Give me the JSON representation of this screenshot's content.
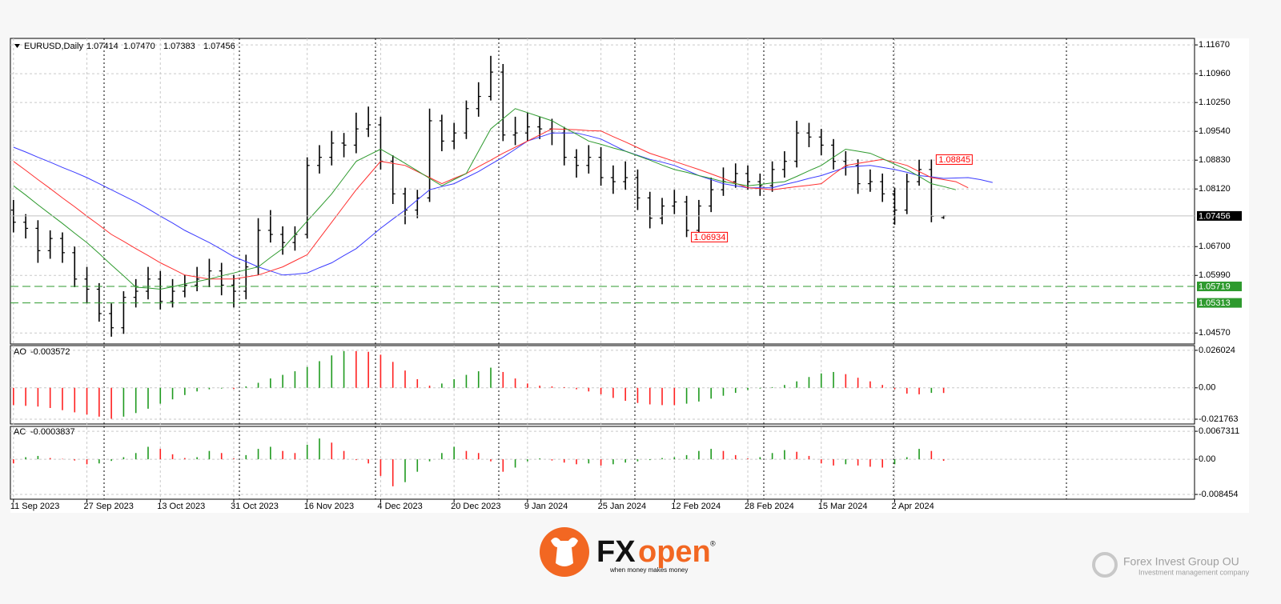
{
  "chart_data": [
    {
      "type": "ohlc",
      "symbol": "EURUSD,Daily",
      "header_values": [
        "1.07414",
        "1.07470",
        "1.07383",
        "1.07456"
      ],
      "color": "#000000",
      "x": [
        0,
        2,
        4,
        6,
        8,
        10,
        12,
        14,
        16,
        18,
        20,
        22,
        24,
        26,
        28,
        30,
        32,
        34,
        36,
        38,
        40,
        42,
        44,
        46,
        48,
        50,
        52,
        54,
        56,
        58,
        60,
        62,
        64,
        66,
        68,
        70,
        72,
        74,
        76,
        78,
        80,
        82,
        84,
        86,
        88,
        90,
        92,
        94,
        96,
        98,
        100,
        102,
        104,
        106,
        108,
        110,
        112,
        114,
        116,
        118,
        120,
        122,
        124,
        126,
        128,
        130,
        132,
        134,
        136,
        138,
        140,
        142,
        144,
        146,
        148,
        150,
        152,
        154,
        156,
        158,
        160
      ],
      "open": [
        1.076,
        1.073,
        1.0715,
        1.066,
        1.069,
        1.0655,
        1.059,
        1.0565,
        1.0505,
        1.047,
        1.0545,
        1.056,
        1.059,
        1.0535,
        1.056,
        1.0575,
        1.059,
        1.061,
        1.0575,
        1.056,
        1.062,
        1.071,
        1.07,
        1.068,
        1.07,
        1.087,
        1.089,
        1.0925,
        1.092,
        1.096,
        1.097,
        1.088,
        1.08,
        1.076,
        1.079,
        1.098,
        1.093,
        1.095,
        1.101,
        1.104,
        1.11,
        1.0945,
        1.095,
        1.0965,
        1.096,
        1.095,
        1.089,
        1.087,
        1.089,
        1.084,
        1.083,
        1.084,
        1.079,
        1.074,
        1.077,
        1.078,
        1.071,
        1.077,
        1.081,
        1.083,
        1.085,
        1.083,
        1.082,
        1.086,
        1.088,
        1.095,
        1.094,
        1.092,
        1.088,
        1.087,
        1.0825,
        1.083,
        1.08,
        1.076,
        1.083,
        1.086,
        1.07414,
        null,
        null,
        null,
        null
      ],
      "high": [
        1.0785,
        1.075,
        1.0735,
        1.071,
        1.0705,
        1.067,
        1.062,
        1.058,
        1.053,
        1.056,
        1.059,
        1.062,
        1.061,
        1.059,
        1.06,
        1.062,
        1.064,
        1.063,
        1.06,
        1.065,
        1.074,
        1.076,
        1.072,
        1.072,
        1.089,
        1.092,
        1.0955,
        1.095,
        1.1,
        1.1015,
        1.099,
        1.0895,
        1.0815,
        1.081,
        1.101,
        1.0995,
        1.0975,
        1.103,
        1.1075,
        1.114,
        1.112,
        1.099,
        1.1,
        1.099,
        1.0985,
        1.0965,
        1.091,
        1.092,
        1.0915,
        1.087,
        1.088,
        1.086,
        1.0805,
        1.079,
        1.081,
        1.0795,
        1.0785,
        1.084,
        1.0865,
        1.0875,
        1.087,
        1.085,
        1.088,
        1.0905,
        1.098,
        1.0975,
        1.096,
        1.0935,
        1.0905,
        1.0885,
        1.086,
        1.085,
        1.0815,
        1.085,
        1.0884,
        1.08845,
        1.0747,
        null,
        null,
        null,
        null
      ],
      "low": [
        1.0705,
        1.069,
        1.063,
        1.064,
        1.063,
        1.057,
        1.053,
        1.0485,
        1.0448,
        1.0455,
        1.052,
        1.054,
        1.0515,
        1.052,
        1.0545,
        1.056,
        1.057,
        1.055,
        1.052,
        1.054,
        1.06,
        1.068,
        1.065,
        1.066,
        1.069,
        1.085,
        1.087,
        1.089,
        1.09,
        1.094,
        1.086,
        1.0775,
        1.0725,
        1.074,
        1.078,
        1.0905,
        1.091,
        1.0935,
        1.099,
        1.103,
        1.093,
        1.092,
        1.093,
        1.0935,
        1.092,
        1.087,
        1.084,
        1.085,
        1.082,
        1.08,
        1.081,
        1.076,
        1.0715,
        1.0725,
        1.075,
        1.06934,
        1.07,
        1.0755,
        1.0795,
        1.0815,
        1.081,
        1.0795,
        1.0805,
        1.084,
        1.0865,
        1.0915,
        1.0895,
        1.086,
        1.0845,
        1.08,
        1.0805,
        1.078,
        1.0724,
        1.075,
        1.082,
        1.073,
        1.07383,
        null,
        null,
        null,
        null
      ],
      "close": [
        1.073,
        1.0715,
        1.066,
        1.069,
        1.0655,
        1.059,
        1.0565,
        1.0505,
        1.047,
        1.0545,
        1.056,
        1.059,
        1.0535,
        1.056,
        1.0575,
        1.059,
        1.061,
        1.0575,
        1.056,
        1.062,
        1.071,
        1.07,
        1.068,
        1.07,
        1.087,
        1.089,
        1.0925,
        1.092,
        1.096,
        1.097,
        1.088,
        1.08,
        1.076,
        1.079,
        1.098,
        1.093,
        1.095,
        1.101,
        1.104,
        1.11,
        1.0945,
        1.095,
        1.0965,
        1.096,
        1.095,
        1.089,
        1.087,
        1.089,
        1.084,
        1.083,
        1.084,
        1.079,
        1.074,
        1.077,
        1.078,
        1.071,
        1.077,
        1.081,
        1.083,
        1.085,
        1.083,
        1.082,
        1.086,
        1.088,
        1.095,
        1.094,
        1.092,
        1.088,
        1.087,
        1.0825,
        1.083,
        1.08,
        1.076,
        1.083,
        1.086,
        1.0745,
        1.07456,
        null,
        null,
        null,
        null
      ],
      "lines": [
        {
          "color": "#3b3bff",
          "values": [
            1.0915,
            1.0903,
            1.089,
            1.0878,
            1.0865,
            1.0853,
            1.084,
            1.0825,
            1.081,
            1.0795,
            1.078,
            1.0763,
            1.0745,
            1.0728,
            1.071,
            1.0695,
            1.068,
            1.0663,
            1.0645,
            1.0633,
            1.062,
            1.061,
            1.06,
            1.0602,
            1.0605,
            1.0618,
            1.063,
            1.0648,
            1.0665,
            1.069,
            1.0715,
            1.0738,
            1.076,
            1.0785,
            1.081,
            1.0818,
            1.0825,
            1.084,
            1.0855,
            1.0873,
            1.089,
            1.091,
            1.093,
            1.094,
            1.095,
            1.095,
            1.095,
            1.0943,
            1.0935,
            1.092,
            1.0905,
            1.0895,
            1.0885,
            1.0878,
            1.087,
            1.0858,
            1.0845,
            1.0835,
            1.0825,
            1.082,
            1.0815,
            1.0815,
            1.0815,
            1.0823,
            1.083,
            1.0838,
            1.0845,
            1.0855,
            1.0865,
            1.0868,
            1.087,
            1.0865,
            1.086,
            1.0853,
            1.0845,
            1.0842,
            1.0838,
            1.0839,
            1.084,
            1.0835,
            1.0828
          ]
        },
        {
          "color": "#ff3030",
          "values": [
            1.088,
            1.0858,
            1.0835,
            1.0813,
            1.079,
            1.0768,
            1.0745,
            1.0723,
            1.07,
            1.0683,
            1.0665,
            1.0648,
            1.063,
            1.0615,
            1.06,
            1.0595,
            1.059,
            1.059,
            1.059,
            1.0595,
            1.06,
            1.061,
            1.062,
            1.0635,
            1.065,
            1.069,
            1.073,
            1.077,
            1.081,
            1.0845,
            1.088,
            1.0875,
            1.087,
            1.0855,
            1.084,
            1.0825,
            1.0838,
            1.085,
            1.0867,
            1.0883,
            1.09,
            1.0915,
            1.093,
            1.0945,
            1.096,
            1.0959,
            1.0958,
            1.0956,
            1.0955,
            1.0941,
            1.0928,
            1.0914,
            1.09,
            1.089,
            1.088,
            1.087,
            1.086,
            1.0849,
            1.0838,
            1.0826,
            1.0815,
            1.0813,
            1.081,
            1.0814,
            1.0818,
            1.0821,
            1.0825,
            1.0848,
            1.087,
            1.0875,
            1.088,
            1.0885,
            1.0878,
            1.087,
            1.0855,
            1.084,
            1.0835,
            1.083,
            1.0815,
            null,
            null
          ]
        },
        {
          "color": "#2e9a2e",
          "values": [
            1.082,
            1.0797,
            1.0773,
            1.075,
            1.0727,
            1.0703,
            1.068,
            1.0653,
            1.0625,
            1.0598,
            1.057,
            1.0568,
            1.0565,
            1.0571,
            1.0578,
            1.0584,
            1.059,
            1.0598,
            1.0605,
            1.0613,
            1.062,
            1.0643,
            1.0665,
            1.0699,
            1.0733,
            1.0766,
            1.08,
            1.084,
            1.088,
            1.0895,
            1.091,
            1.0893,
            1.0875,
            1.0857,
            1.0838,
            1.082,
            1.0835,
            1.085,
            1.0905,
            1.096,
            1.0985,
            1.101,
            1.1,
            1.099,
            1.098,
            1.0963,
            1.0947,
            1.093,
            1.0922,
            1.0913,
            1.0905,
            1.0894,
            1.0883,
            1.0871,
            1.086,
            1.0853,
            1.0845,
            1.0838,
            1.083,
            1.0825,
            1.082,
            1.0823,
            1.0827,
            1.083,
            1.0843,
            1.0857,
            1.087,
            1.089,
            1.091,
            1.0905,
            1.09,
            1.0887,
            1.0873,
            1.086,
            1.0843,
            1.0825,
            1.0818,
            1.081,
            null,
            null,
            null
          ]
        }
      ],
      "hlines": [
        {
          "value": 1.05719,
          "color": "#2e9a2e"
        },
        {
          "value": 1.05313,
          "color": "#2e9a2e"
        }
      ],
      "annotations": [
        {
          "x": 150,
          "value": 1.08845,
          "color": "#ff0000"
        },
        {
          "x": 110,
          "value": 1.06934,
          "color": "#ff0000"
        }
      ],
      "xlim": [
        -0.5,
        193
      ],
      "ylim": [
        1.043,
        1.1183
      ],
      "yticks": [
        {
          "value": 1.1167,
          "label": "1.11670"
        },
        {
          "value": 1.1096,
          "label": "1.10960"
        },
        {
          "value": 1.1025,
          "label": "1.10250"
        },
        {
          "value": 1.0954,
          "label": "1.09540"
        },
        {
          "value": 1.0883,
          "label": "1.08830"
        },
        {
          "value": 1.0812,
          "label": "1.08120"
        },
        {
          "value": 1.067,
          "label": "1.06700"
        },
        {
          "value": 1.0599,
          "label": "1.05990"
        },
        {
          "value": 1.0457,
          "label": "1.04570"
        }
      ],
      "grid": true
    },
    {
      "type": "histogram",
      "title": "AO",
      "up_color": "#1f9a1f",
      "down_color": "#ff2020",
      "x": [
        0,
        2,
        4,
        6,
        8,
        10,
        12,
        14,
        16,
        18,
        20,
        22,
        24,
        26,
        28,
        30,
        32,
        34,
        36,
        38,
        40,
        42,
        44,
        46,
        48,
        50,
        52,
        54,
        56,
        58,
        60,
        62,
        64,
        66,
        68,
        70,
        72,
        74,
        76,
        78,
        80,
        82,
        84,
        86,
        88,
        90,
        92,
        94,
        96,
        98,
        100,
        102,
        104,
        106,
        108,
        110,
        112,
        114,
        116,
        118,
        120,
        122,
        124,
        126,
        128,
        130,
        132,
        134,
        136,
        138,
        140,
        142,
        144,
        146,
        148,
        150,
        152
      ],
      "values": [
        -0.012,
        -0.0125,
        -0.013,
        -0.014,
        -0.0155,
        -0.017,
        -0.0185,
        -0.02,
        -0.0215,
        -0.02,
        -0.0175,
        -0.0145,
        -0.011,
        -0.008,
        -0.005,
        -0.0025,
        -0.001,
        -0.0005,
        -0.0008,
        0.001,
        0.0035,
        0.0065,
        0.009,
        0.0115,
        0.0145,
        0.0185,
        0.0225,
        0.0255,
        0.0255,
        0.025,
        0.023,
        0.018,
        0.012,
        0.006,
        0.0015,
        0.003,
        0.006,
        0.009,
        0.0115,
        0.014,
        0.011,
        0.0065,
        0.003,
        0.0015,
        0.001,
        0.0005,
        -0.001,
        -0.0025,
        -0.0045,
        -0.007,
        -0.009,
        -0.0105,
        -0.0115,
        -0.012,
        -0.012,
        -0.011,
        -0.0095,
        -0.0075,
        -0.0055,
        -0.0035,
        -0.0015,
        -0.0005,
        0.0005,
        0.002,
        0.0045,
        0.0075,
        0.01,
        0.011,
        0.0095,
        0.007,
        0.0045,
        0.002,
        -0.001,
        -0.004,
        -0.0045,
        -0.0035,
        -0.003572
      ],
      "xlim": [
        -0.5,
        193
      ],
      "ylim": [
        -0.0251,
        0.0293
      ],
      "yticks": [
        0.026024,
        {
          "value": 0,
          "label": "0.00"
        },
        -0.021763
      ],
      "grid": true
    },
    {
      "type": "histogram",
      "title": "AC",
      "up_color": "#1f9a1f",
      "down_color": "#ff2020",
      "x": [
        0,
        2,
        4,
        6,
        8,
        10,
        12,
        14,
        16,
        18,
        20,
        22,
        24,
        26,
        28,
        30,
        32,
        34,
        36,
        38,
        40,
        42,
        44,
        46,
        48,
        50,
        52,
        54,
        56,
        58,
        60,
        62,
        64,
        66,
        68,
        70,
        72,
        74,
        76,
        78,
        80,
        82,
        84,
        86,
        88,
        90,
        92,
        94,
        96,
        98,
        100,
        102,
        104,
        106,
        108,
        110,
        112,
        114,
        116,
        118,
        120,
        122,
        124,
        126,
        128,
        130,
        132,
        134,
        136,
        138,
        140,
        142,
        144,
        146,
        148,
        150,
        152
      ],
      "values": [
        -0.001,
        0.0005,
        0.0008,
        0.0003,
        0.0001,
        -0.0003,
        -0.0012,
        -0.001,
        -0.0004,
        0.0005,
        0.0015,
        0.003,
        0.0025,
        0.0012,
        0.0003,
        0.0005,
        0.002,
        0.0015,
        0.0002,
        0.001,
        0.0025,
        0.003,
        0.002,
        0.0015,
        0.0035,
        0.005,
        0.004,
        0.002,
        -0.0002,
        -0.001,
        -0.004,
        -0.0065,
        -0.0055,
        -0.003,
        -0.0005,
        0.0015,
        0.003,
        0.002,
        0.0015,
        -0.0005,
        -0.003,
        -0.002,
        -0.0005,
        0.0002,
        -0.0003,
        -0.0008,
        -0.0012,
        -0.001,
        -0.0015,
        -0.0012,
        -0.0008,
        -0.0005,
        -0.0002,
        0.0003,
        0.0005,
        0.001,
        0.002,
        0.0025,
        0.002,
        0.001,
        0.0002,
        0.0005,
        0.0015,
        0.0022,
        0.0018,
        0.0008,
        -0.001,
        -0.0015,
        -0.0012,
        -0.0015,
        -0.0018,
        -0.002,
        -0.0012,
        0.0005,
        0.0025,
        0.002,
        -0.0003837
      ],
      "xlim": [
        -0.5,
        193
      ],
      "ylim": [
        -0.0096,
        0.0079
      ],
      "yticks": [
        0.0067311,
        {
          "value": 0,
          "label": "0.00"
        },
        -0.008454
      ],
      "xticks": [
        {
          "value": 0,
          "label": "11 Sep 2023"
        },
        {
          "value": 12,
          "label": "27 Sep 2023"
        },
        {
          "value": 24,
          "label": "13 Oct 2023"
        },
        {
          "value": 36,
          "label": "31 Oct 2023"
        },
        {
          "value": 48,
          "label": "16 Nov 2023"
        },
        {
          "value": 60,
          "label": "4 Dec 2023"
        },
        {
          "value": 72,
          "label": "20 Dec 2023"
        },
        {
          "value": 84,
          "label": "9 Jan 2024"
        },
        {
          "value": 96,
          "label": "25 Jan 2024"
        },
        {
          "value": 108,
          "label": "12 Feb 2024"
        },
        {
          "value": 120,
          "label": "28 Feb 2024"
        },
        {
          "value": 132,
          "label": "15 Mar 2024"
        },
        {
          "value": 144,
          "label": "2 Apr 2024"
        }
      ],
      "grid": true
    }
  ],
  "brand": {
    "fx": "FX",
    "open": "open",
    "mark": "®",
    "tagline": "when money makes money"
  },
  "watermark": {
    "name": "Forex Invest Group OU",
    "subtitle": "Investment management company"
  }
}
